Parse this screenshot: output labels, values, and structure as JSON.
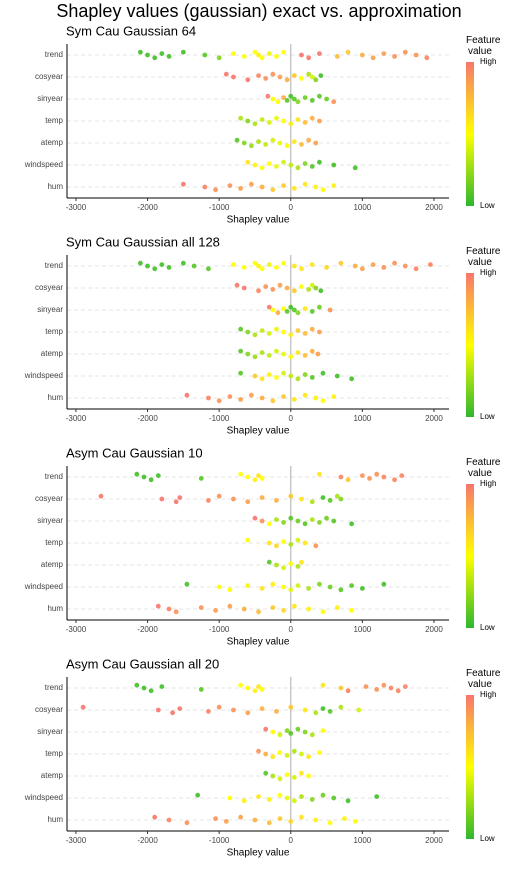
{
  "title": "Shapley values (gaussian) exact vs. approximation",
  "chart_data": [
    {
      "type": "beeswarm",
      "title": "Sym Cau Gaussian 64",
      "x_label": "Shapley value",
      "xlim": [
        -3125,
        2210
      ],
      "xticks": [
        -3000,
        -2000,
        -1000,
        0,
        1000,
        2000
      ],
      "vline": 0,
      "colorbar": {
        "title": "Feature value",
        "high_label": "High",
        "low_label": "Low",
        "colors": [
          "#2db82d",
          "#ffff00",
          "#f8766d"
        ]
      },
      "rows": [
        {
          "label": "trend",
          "x": [
            -2100,
            -2000,
            -1900,
            -1800,
            -1700,
            -1500,
            -1200,
            -1000,
            -800,
            -650,
            -500,
            -450,
            -400,
            -300,
            -200,
            -100,
            150,
            250,
            400,
            650,
            800,
            1000,
            1150,
            1300,
            1450,
            1600,
            1750,
            1900
          ],
          "feature_value": [
            0.05,
            0.05,
            0.05,
            0.05,
            0.05,
            0.05,
            0.1,
            0.2,
            0.5,
            0.5,
            0.5,
            0.55,
            0.5,
            0.45,
            0.5,
            0.5,
            1,
            1,
            1,
            0.75,
            0.7,
            0.8,
            0.85,
            0.85,
            0.9,
            0.9,
            0.9,
            0.95
          ]
        },
        {
          "label": "cosyear",
          "x": [
            -900,
            -800,
            -600,
            -450,
            -350,
            -250,
            -150,
            -50,
            50,
            150,
            250,
            300,
            350,
            420
          ],
          "feature_value": [
            1,
            1,
            1,
            0.95,
            0.9,
            0.9,
            0.85,
            0.8,
            0.7,
            0.5,
            0.3,
            0.4,
            0.2,
            0.05
          ]
        },
        {
          "label": "sinyear",
          "x": [
            -320,
            -250,
            -180,
            -100,
            -50,
            0,
            50,
            100,
            200,
            300,
            400,
            500,
            600
          ],
          "feature_value": [
            1,
            0.5,
            0.5,
            0.8,
            0.1,
            0.05,
            0.1,
            0.2,
            0.15,
            0.1,
            0.1,
            0.15,
            0.9
          ]
        },
        {
          "label": "temp",
          "x": [
            -700,
            -600,
            -500,
            -400,
            -300,
            -200,
            -100,
            0,
            100,
            200,
            300,
            400
          ],
          "feature_value": [
            0.3,
            0.2,
            0.3,
            0.35,
            0.4,
            0.45,
            0.5,
            0.55,
            0.6,
            0.75,
            0.8,
            0.85
          ]
        },
        {
          "label": "atemp",
          "x": [
            -750,
            -650,
            -550,
            -450,
            -350,
            -250,
            -150,
            -50,
            50,
            150,
            250,
            350
          ],
          "feature_value": [
            0.1,
            0.2,
            0.25,
            0.3,
            0.35,
            0.4,
            0.45,
            0.5,
            0.6,
            0.75,
            0.8,
            0.85
          ]
        },
        {
          "label": "windspeed",
          "x": [
            -600,
            -500,
            -400,
            -300,
            -200,
            -100,
            0,
            100,
            200,
            300,
            400,
            600,
            900
          ],
          "feature_value": [
            0.6,
            0.55,
            0.5,
            0.5,
            0.45,
            0.4,
            0.35,
            0.3,
            0.2,
            0.1,
            0.05,
            0.05,
            0.05
          ]
        },
        {
          "label": "hum",
          "x": [
            -1500,
            -1200,
            -1050,
            -850,
            -700,
            -550,
            -400,
            -250,
            -100,
            50,
            200,
            350,
            450,
            600
          ],
          "feature_value": [
            1,
            0.95,
            0.9,
            0.9,
            0.85,
            0.85,
            0.8,
            0.7,
            0.7,
            0.6,
            0.6,
            0.55,
            0.5,
            0.55
          ]
        }
      ]
    },
    {
      "type": "beeswarm",
      "title": "Sym Cau Gaussian all 128",
      "x_label": "Shapley value",
      "xlim": [
        -3125,
        2210
      ],
      "xticks": [
        -3000,
        -2000,
        -1000,
        0,
        1000,
        2000
      ],
      "vline": 0,
      "colorbar": {
        "title": "Feature value",
        "high_label": "High",
        "low_label": "Low",
        "colors": [
          "#2db82d",
          "#ffff00",
          "#f8766d"
        ]
      },
      "rows": [
        {
          "label": "trend",
          "x": [
            -2100,
            -2000,
            -1900,
            -1800,
            -1700,
            -1500,
            -1350,
            -1150,
            -800,
            -650,
            -500,
            -450,
            -400,
            -300,
            -200,
            -100,
            50,
            150,
            300,
            500,
            700,
            900,
            1000,
            1150,
            1300,
            1450,
            1600,
            1750,
            1950
          ],
          "feature_value": [
            0.05,
            0.05,
            0.05,
            0.05,
            0.05,
            0.05,
            0.1,
            0.1,
            0.5,
            0.5,
            0.5,
            0.55,
            0.5,
            0.45,
            0.5,
            0.5,
            0.6,
            0.6,
            0.6,
            0.65,
            0.7,
            0.8,
            0.85,
            0.85,
            0.9,
            0.9,
            0.9,
            0.95,
            0.95
          ]
        },
        {
          "label": "cosyear",
          "x": [
            -750,
            -650,
            -450,
            -350,
            -250,
            -150,
            -50,
            50,
            150,
            250,
            300,
            350,
            420
          ],
          "feature_value": [
            1,
            1,
            0.95,
            0.9,
            0.9,
            0.85,
            0.8,
            0.7,
            0.5,
            0.3,
            0.4,
            0.2,
            0.05
          ]
        },
        {
          "label": "sinyear",
          "x": [
            -300,
            -250,
            -180,
            -100,
            -50,
            0,
            50,
            100,
            200,
            300,
            400,
            550
          ],
          "feature_value": [
            1,
            0.5,
            0.8,
            0.5,
            0.1,
            0.05,
            0.1,
            0.2,
            0.6,
            0.1,
            0.15,
            0.9
          ]
        },
        {
          "label": "temp",
          "x": [
            -700,
            -600,
            -500,
            -400,
            -300,
            -200,
            -100,
            0,
            100,
            200,
            300,
            400
          ],
          "feature_value": [
            0.1,
            0.2,
            0.3,
            0.35,
            0.4,
            0.45,
            0.5,
            0.55,
            0.7,
            0.75,
            0.8,
            0.85
          ]
        },
        {
          "label": "atemp",
          "x": [
            -700,
            -600,
            -500,
            -400,
            -300,
            -200,
            -100,
            0,
            100,
            200,
            300,
            380
          ],
          "feature_value": [
            0.1,
            0.2,
            0.25,
            0.3,
            0.35,
            0.4,
            0.45,
            0.5,
            0.6,
            0.75,
            0.8,
            0.85
          ]
        },
        {
          "label": "windspeed",
          "x": [
            -700,
            -500,
            -400,
            -300,
            -200,
            -100,
            0,
            100,
            200,
            300,
            450,
            650,
            850
          ],
          "feature_value": [
            0.1,
            0.7,
            0.6,
            0.55,
            0.5,
            0.4,
            0.35,
            0.3,
            0.2,
            0.1,
            0.05,
            0.05,
            0.05
          ]
        },
        {
          "label": "hum",
          "x": [
            -1450,
            -1150,
            -1000,
            -850,
            -700,
            -550,
            -400,
            -250,
            -100,
            50,
            200,
            350,
            450,
            600
          ],
          "feature_value": [
            1,
            0.95,
            0.9,
            0.9,
            0.85,
            0.85,
            0.8,
            0.7,
            0.7,
            0.6,
            0.6,
            0.55,
            0.5,
            0.55
          ]
        }
      ]
    },
    {
      "type": "beeswarm",
      "title": "Asym Cau Gaussian 10",
      "x_label": "Shapley value",
      "xlim": [
        -3125,
        2210
      ],
      "xticks": [
        -3000,
        -2000,
        -1000,
        0,
        1000,
        2000
      ],
      "vline": 0,
      "colorbar": {
        "title": "Feature value",
        "high_label": "High",
        "low_label": "Low",
        "colors": [
          "#2db82d",
          "#ffff00",
          "#f8766d"
        ]
      },
      "rows": [
        {
          "label": "trend",
          "x": [
            -2150,
            -2050,
            -1950,
            -1850,
            -1250,
            -700,
            -600,
            -500,
            -450,
            -400,
            400,
            700,
            800,
            1000,
            1100,
            1200,
            1300,
            1450,
            1550
          ],
          "feature_value": [
            0.05,
            0.05,
            0.05,
            0.05,
            0.1,
            0.5,
            0.5,
            0.55,
            0.6,
            0.5,
            0.6,
            0.95,
            0.7,
            0.9,
            0.9,
            0.9,
            0.95,
            0.95,
            0.95
          ]
        },
        {
          "label": "cosyear",
          "x": [
            -2650,
            -1800,
            -1600,
            -1550,
            -1150,
            -1000,
            -800,
            -600,
            -400,
            -200,
            0,
            150,
            300,
            450,
            550,
            650,
            700
          ],
          "feature_value": [
            1,
            1,
            1,
            1,
            0.95,
            0.9,
            0.9,
            0.85,
            0.8,
            0.8,
            0.7,
            0.6,
            0.3,
            0.05,
            0.1,
            0.3,
            0.2
          ]
        },
        {
          "label": "sinyear",
          "x": [
            -500,
            -400,
            -300,
            -200,
            -100,
            0,
            100,
            200,
            300,
            400,
            500,
            600,
            850
          ],
          "feature_value": [
            1,
            0.9,
            0.5,
            0.3,
            0.2,
            0.1,
            0.15,
            0.1,
            0.3,
            0.2,
            0.15,
            0.1,
            0.05
          ]
        },
        {
          "label": "temp",
          "x": [
            -600,
            -300,
            -200,
            -100,
            0,
            100,
            200,
            350
          ],
          "feature_value": [
            0.5,
            0.6,
            0.65,
            0.5,
            0.3,
            0.4,
            0.6,
            0.9
          ]
        },
        {
          "label": "atemp",
          "x": [
            -300,
            -200,
            -100,
            0,
            100,
            150
          ],
          "feature_value": [
            0.1,
            0.3,
            0.4,
            0.5,
            0.3,
            0.6
          ]
        },
        {
          "label": "windspeed",
          "x": [
            -1450,
            -1000,
            -850,
            -600,
            -400,
            -250,
            -100,
            0,
            100,
            250,
            400,
            550,
            700,
            850,
            1000,
            1300
          ],
          "feature_value": [
            0.05,
            0.5,
            0.5,
            0.55,
            0.6,
            0.55,
            0.5,
            0.45,
            0.4,
            0.3,
            0.2,
            0.15,
            0.1,
            0.1,
            0.05,
            0.05
          ]
        },
        {
          "label": "hum",
          "x": [
            -1850,
            -1700,
            -1600,
            -1250,
            -1050,
            -850,
            -650,
            -450,
            -250,
            -100,
            50,
            250,
            450,
            650,
            850
          ],
          "feature_value": [
            1,
            0.95,
            0.9,
            0.9,
            0.85,
            0.85,
            0.8,
            0.75,
            0.7,
            0.65,
            0.6,
            0.55,
            0.5,
            0.55,
            0.5
          ]
        }
      ]
    },
    {
      "type": "beeswarm",
      "title": "Asym Cau Gaussian all 20",
      "x_label": "Shapley value",
      "xlim": [
        -3125,
        2210
      ],
      "xticks": [
        -3000,
        -2000,
        -1000,
        0,
        1000,
        2000
      ],
      "vline": 0,
      "colorbar": {
        "title": "Feature value",
        "high_label": "High",
        "low_label": "Low",
        "colors": [
          "#2db82d",
          "#ffff00",
          "#f8766d"
        ]
      },
      "rows": [
        {
          "label": "trend",
          "x": [
            -2150,
            -2050,
            -1950,
            -1800,
            -1250,
            -700,
            -600,
            -500,
            -450,
            -400,
            450,
            700,
            800,
            1050,
            1200,
            1300,
            1400,
            1500,
            1600
          ],
          "feature_value": [
            0.05,
            0.05,
            0.05,
            0.05,
            0.1,
            0.5,
            0.5,
            0.55,
            0.6,
            0.5,
            0.6,
            0.7,
            0.95,
            0.9,
            0.9,
            0.9,
            0.95,
            0.95,
            0.95
          ]
        },
        {
          "label": "cosyear",
          "x": [
            -2900,
            -1850,
            -1650,
            -1550,
            -1150,
            -1000,
            -800,
            -600,
            -400,
            -200,
            0,
            200,
            350,
            450,
            550,
            700,
            950
          ],
          "feature_value": [
            1,
            1,
            1,
            1,
            0.95,
            0.9,
            0.9,
            0.85,
            0.8,
            0.8,
            0.7,
            0.6,
            0.3,
            0.05,
            0.1,
            0.3,
            0.4
          ]
        },
        {
          "label": "sinyear",
          "x": [
            -350,
            -250,
            -150,
            -50,
            0,
            100,
            200,
            300,
            450
          ],
          "feature_value": [
            1,
            0.5,
            0.4,
            0.2,
            0.1,
            0.15,
            0.2,
            0.3,
            0.5
          ]
        },
        {
          "label": "temp",
          "x": [
            -450,
            -350,
            -250,
            -150,
            -50,
            50,
            150,
            250,
            400
          ],
          "feature_value": [
            0.9,
            0.8,
            0.6,
            0.5,
            0.4,
            0.3,
            0.4,
            0.6,
            0.5
          ]
        },
        {
          "label": "atemp",
          "x": [
            -350,
            -250,
            -150,
            -50,
            50,
            150,
            250
          ],
          "feature_value": [
            0.1,
            0.3,
            0.4,
            0.5,
            0.4,
            0.6,
            0.5
          ]
        },
        {
          "label": "windspeed",
          "x": [
            -1300,
            -850,
            -650,
            -450,
            -300,
            -150,
            -50,
            50,
            150,
            300,
            450,
            600,
            800,
            1200
          ],
          "feature_value": [
            0.05,
            0.5,
            0.55,
            0.6,
            0.55,
            0.5,
            0.45,
            0.4,
            0.3,
            0.2,
            0.15,
            0.1,
            0.05,
            0.05
          ]
        },
        {
          "label": "hum",
          "x": [
            -1900,
            -1700,
            -1450,
            -1050,
            -900,
            -700,
            -500,
            -300,
            -150,
            0,
            150,
            350,
            550,
            750,
            900
          ],
          "feature_value": [
            1,
            0.95,
            0.9,
            0.9,
            0.85,
            0.85,
            0.8,
            0.75,
            0.7,
            0.65,
            0.6,
            0.55,
            0.5,
            0.55,
            0.5
          ]
        }
      ]
    }
  ]
}
